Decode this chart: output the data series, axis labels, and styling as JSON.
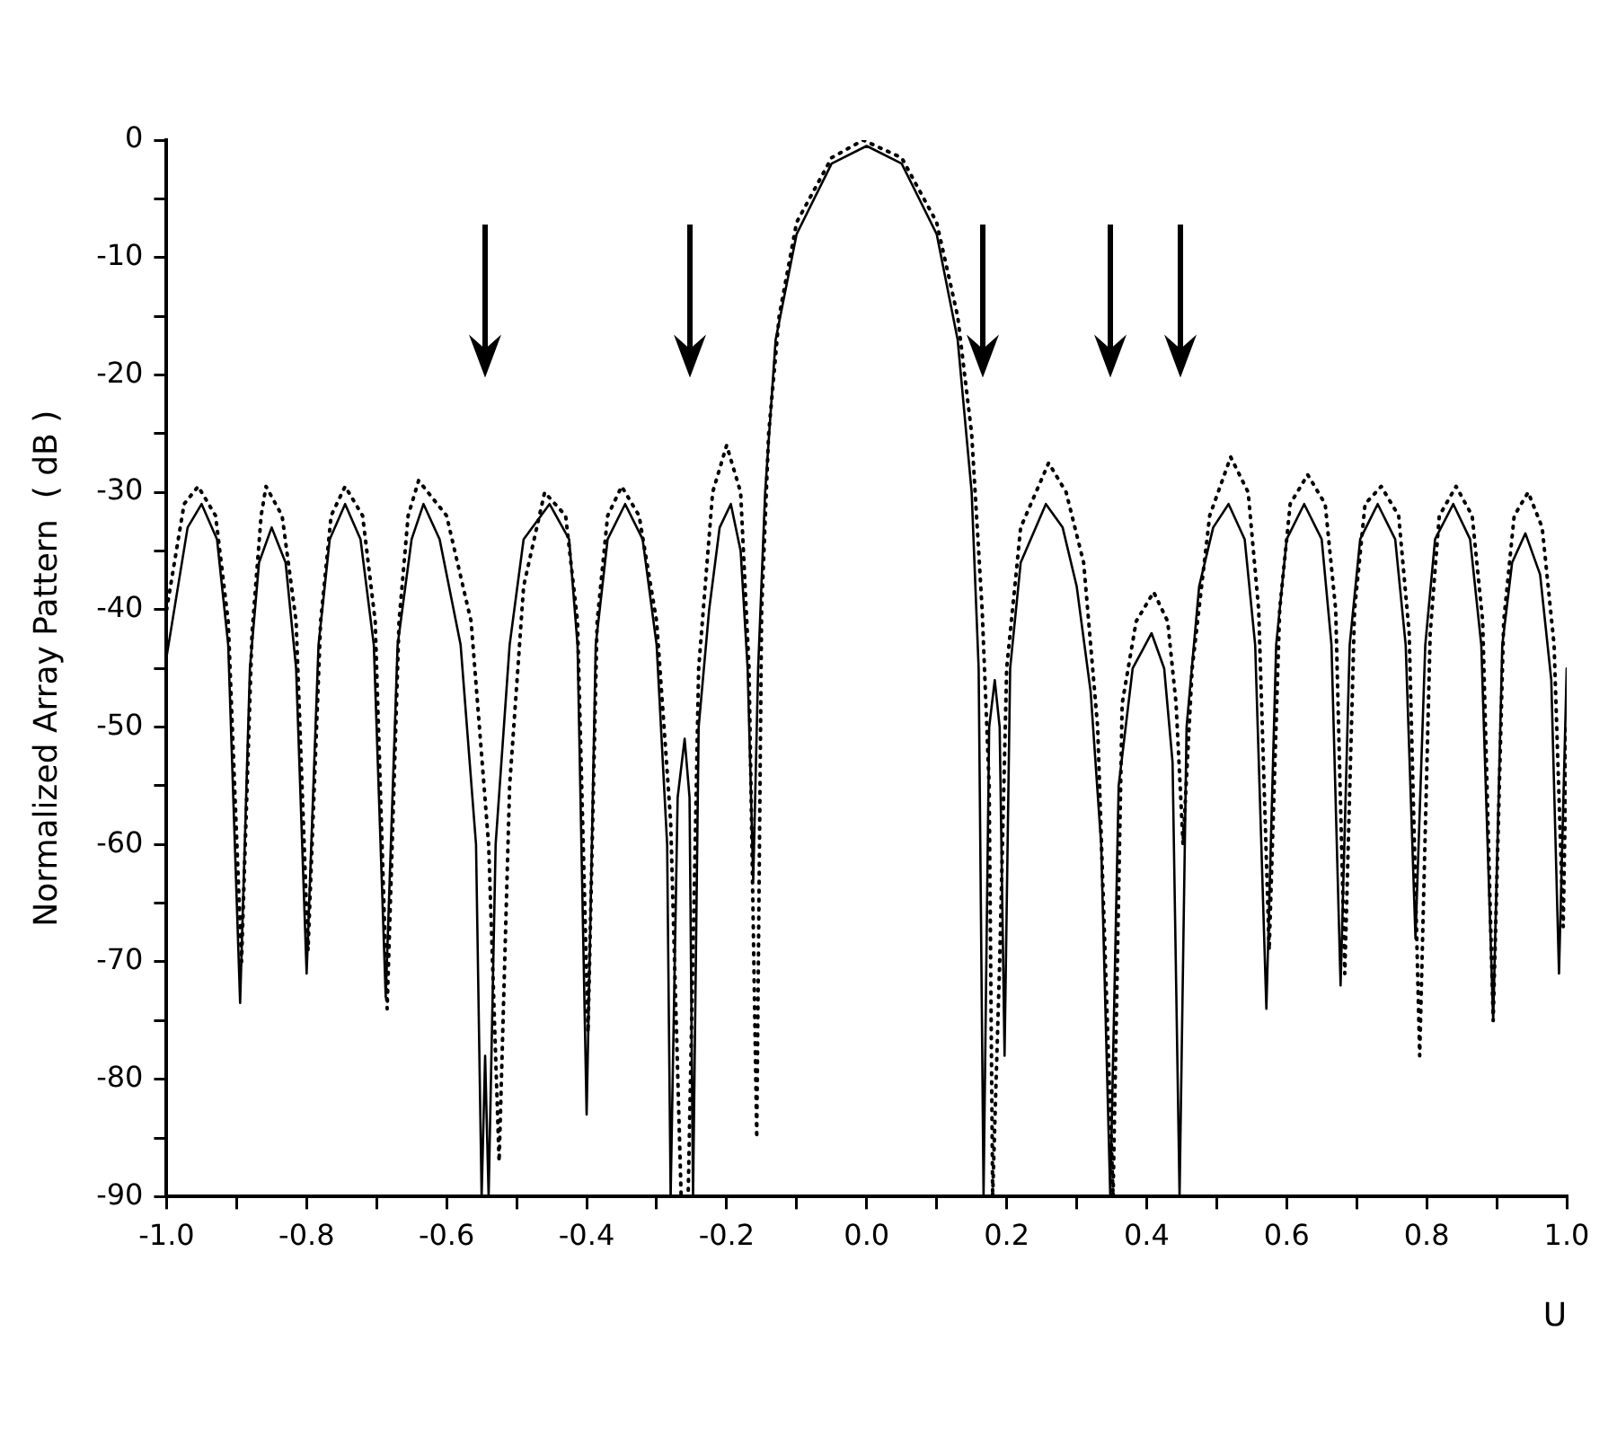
{
  "chart_data": {
    "type": "line",
    "xlabel": "U",
    "ylabel": "Normalized Array Pattern  ( dB )",
    "marker": "none",
    "grid": false,
    "legend": false,
    "xlim": [
      -1,
      1
    ],
    "ylim": [
      -90,
      0
    ],
    "xticks": [
      {
        "value": -1,
        "label": "-1.0"
      },
      {
        "value": -0.9,
        "label": null
      },
      -0.8,
      {
        "value": -0.7,
        "label": null
      },
      -0.6,
      {
        "value": -0.5,
        "label": null
      },
      -0.4,
      {
        "value": -0.3,
        "label": null
      },
      -0.2,
      {
        "value": -0.1,
        "label": null
      },
      {
        "value": 0,
        "label": "0.0"
      },
      {
        "value": 0.1,
        "label": null
      },
      0.2,
      {
        "value": 0.3,
        "label": null
      },
      0.4,
      {
        "value": 0.5,
        "label": null
      },
      0.6,
      {
        "value": 0.7,
        "label": null
      },
      0.8,
      {
        "value": 0.9,
        "label": null
      },
      {
        "value": 1,
        "label": "1.0"
      }
    ],
    "yticks": [
      -90,
      {
        "value": -85,
        "label": null
      },
      -80,
      {
        "value": -75,
        "label": null
      },
      -70,
      {
        "value": -65,
        "label": null
      },
      -60,
      {
        "value": -55,
        "label": null
      },
      -50,
      {
        "value": -45,
        "label": null
      },
      -40,
      {
        "value": -35,
        "label": null
      },
      -30,
      {
        "value": -25,
        "label": null
      },
      -20,
      {
        "value": -15,
        "label": null
      },
      -10,
      {
        "value": -5,
        "label": null
      },
      0
    ],
    "ref_lines": [
      {
        "axis": "x",
        "value": -0.545,
        "color": "#000000"
      },
      {
        "axis": "x",
        "value": -0.253,
        "color": "#000000"
      },
      {
        "axis": "x",
        "value": 0.167,
        "color": "#000000"
      },
      {
        "axis": "x",
        "value": 0.348,
        "color": "#000000"
      },
      {
        "axis": "x",
        "value": 0.447,
        "color": "#000000"
      }
    ],
    "series": [
      {
        "color": "#000000",
        "line_style": "solid",
        "x": [
          -1.0,
          -0.97,
          -0.95,
          -0.928,
          -0.912,
          -0.895,
          -0.881,
          -0.868,
          -0.85,
          -0.83,
          -0.815,
          -0.8,
          -0.783,
          -0.767,
          -0.745,
          -0.723,
          -0.704,
          -0.687,
          -0.67,
          -0.65,
          -0.633,
          -0.61,
          -0.58,
          -0.558,
          -0.55,
          -0.545,
          -0.54,
          -0.53,
          -0.51,
          -0.49,
          -0.453,
          -0.425,
          -0.413,
          -0.4,
          -0.387,
          -0.37,
          -0.345,
          -0.32,
          -0.3,
          -0.285,
          -0.28,
          -0.27,
          -0.26,
          -0.253,
          -0.248,
          -0.24,
          -0.225,
          -0.21,
          -0.194,
          -0.18,
          -0.17,
          -0.162,
          -0.155,
          -0.145,
          -0.13,
          -0.1,
          -0.05,
          0,
          0.05,
          0.1,
          0.13,
          0.15,
          0.16,
          0.167,
          0.175,
          0.183,
          0.19,
          0.197,
          0.205,
          0.22,
          0.256,
          0.28,
          0.3,
          0.32,
          0.335,
          0.348,
          0.36,
          0.38,
          0.407,
          0.425,
          0.437,
          0.447,
          0.457,
          0.475,
          0.495,
          0.517,
          0.54,
          0.555,
          0.571,
          0.585,
          0.6,
          0.625,
          0.65,
          0.664,
          0.677,
          0.69,
          0.705,
          0.73,
          0.755,
          0.77,
          0.784,
          0.798,
          0.812,
          0.838,
          0.862,
          0.878,
          0.895,
          0.908,
          0.922,
          0.941,
          0.962,
          0.978,
          0.989,
          1.0
        ],
        "values": [
          -44,
          -33,
          -31,
          -34,
          -43,
          -73.5,
          -45,
          -36,
          -33,
          -36,
          -45,
          -71,
          -43,
          -34,
          -31,
          -34,
          -43,
          -73,
          -43,
          -34,
          -31,
          -34,
          -43,
          -60,
          -90,
          -78,
          -90,
          -60,
          -43,
          -34,
          -31,
          -34,
          -43,
          -83,
          -43,
          -34,
          -31,
          -34,
          -43,
          -60,
          -90,
          -56,
          -51,
          -56,
          -90,
          -50,
          -40,
          -33,
          -31,
          -35,
          -45,
          -63,
          -45,
          -30,
          -17,
          -8,
          -2,
          -0.5,
          -2,
          -8,
          -17,
          -30,
          -45,
          -90,
          -50,
          -46,
          -50,
          -78,
          -45,
          -36,
          -31,
          -33,
          -38,
          -47,
          -60,
          -90,
          -55,
          -45,
          -42,
          -45,
          -53,
          -90,
          -50,
          -38,
          -33,
          -31,
          -34,
          -43,
          -74,
          -43,
          -34,
          -31,
          -34,
          -43,
          -72,
          -43,
          -34,
          -31,
          -34,
          -43,
          -68,
          -43,
          -34,
          -31,
          -34,
          -43,
          -75,
          -43,
          -36,
          -33.5,
          -37,
          -46,
          -71,
          -45
        ]
      },
      {
        "color": "#000000",
        "line_style": "dotted",
        "x": [
          -1.0,
          -0.975,
          -0.955,
          -0.93,
          -0.912,
          -0.893,
          -0.878,
          -0.865,
          -0.858,
          -0.835,
          -0.815,
          -0.798,
          -0.78,
          -0.765,
          -0.745,
          -0.72,
          -0.702,
          -0.685,
          -0.668,
          -0.655,
          -0.64,
          -0.6,
          -0.565,
          -0.54,
          -0.525,
          -0.51,
          -0.49,
          -0.46,
          -0.43,
          -0.413,
          -0.398,
          -0.385,
          -0.37,
          -0.35,
          -0.325,
          -0.3,
          -0.28,
          -0.265,
          -0.255,
          -0.24,
          -0.22,
          -0.2,
          -0.18,
          -0.168,
          -0.157,
          -0.15,
          -0.14,
          -0.125,
          -0.1,
          -0.05,
          -0.005,
          0.05,
          0.1,
          0.13,
          0.15,
          0.165,
          0.175,
          0.18,
          0.19,
          0.2,
          0.22,
          0.26,
          0.285,
          0.31,
          0.33,
          0.352,
          0.365,
          0.385,
          0.41,
          0.43,
          0.442,
          0.452,
          0.465,
          0.49,
          0.52,
          0.545,
          0.56,
          0.575,
          0.59,
          0.605,
          0.63,
          0.655,
          0.67,
          0.683,
          0.697,
          0.712,
          0.735,
          0.76,
          0.775,
          0.79,
          0.805,
          0.818,
          0.842,
          0.865,
          0.88,
          0.895,
          0.91,
          0.925,
          0.945,
          0.965,
          0.982,
          0.995,
          1.0
        ],
        "values": [
          -40,
          -31,
          -29.5,
          -32,
          -41,
          -70,
          -42,
          -32,
          -29.5,
          -32,
          -41,
          -69,
          -41,
          -32,
          -29.5,
          -32,
          -41,
          -74,
          -41,
          -32,
          -29,
          -32,
          -41,
          -60,
          -87,
          -55,
          -38,
          -30,
          -32,
          -41,
          -76,
          -41,
          -32,
          -29.5,
          -32,
          -41,
          -58,
          -90,
          -90,
          -45,
          -30,
          -26,
          -30,
          -45,
          -85,
          -40,
          -25,
          -15,
          -7,
          -1.5,
          0,
          -1.5,
          -7,
          -15,
          -25,
          -40,
          -55,
          -90,
          -70,
          -45,
          -33,
          -27.5,
          -30,
          -36,
          -50,
          -90,
          -48,
          -41,
          -38.5,
          -41,
          -48,
          -60,
          -45,
          -32,
          -27,
          -30,
          -40,
          -69,
          -40,
          -31,
          -28.5,
          -31,
          -40,
          -71,
          -40,
          -31,
          -29.5,
          -32,
          -42,
          -78,
          -42,
          -32,
          -29.5,
          -32,
          -41,
          -75,
          -41,
          -32,
          -30,
          -33,
          -43,
          -67,
          -50
        ]
      }
    ]
  }
}
